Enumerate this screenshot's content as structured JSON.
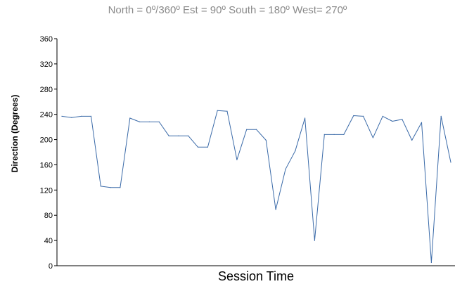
{
  "chart_data": {
    "type": "line",
    "subtitle": "North = 0º/360º   Est = 90º   South = 180º   West= 270º",
    "xlabel": "Session Time",
    "ylabel": "Direction (Degrees)",
    "ylim": [
      0,
      360
    ],
    "yticks": [
      "0",
      "40",
      "80",
      "120",
      "160",
      "200",
      "240",
      "280",
      "320",
      "360"
    ],
    "grid": false,
    "line_color": "#3a6aa8",
    "series": [
      {
        "values": [
          237,
          235,
          237,
          237,
          126,
          124,
          124,
          234,
          228,
          228,
          228,
          206,
          206,
          206,
          188,
          188,
          246,
          245,
          168,
          216,
          216,
          199,
          89,
          153,
          182,
          234,
          40,
          208,
          208,
          208,
          238,
          237,
          203,
          237,
          229,
          232,
          199,
          227,
          5,
          237,
          164
        ]
      }
    ]
  }
}
